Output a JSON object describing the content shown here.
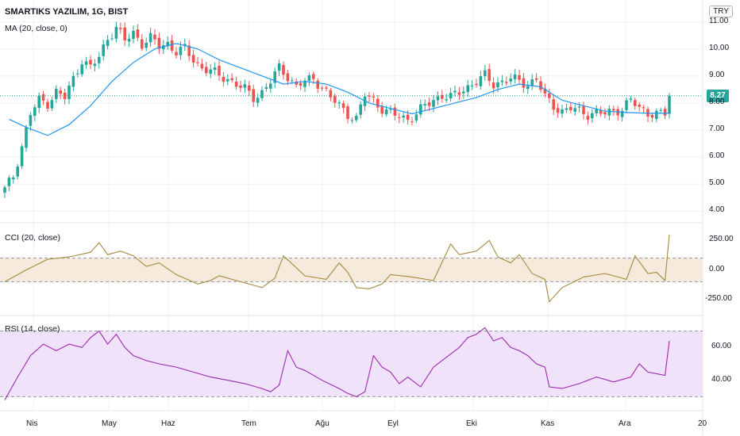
{
  "header": {
    "symbol_line": "SMARTIKS YAZILIM, 1G, BIST",
    "currency": "TRY"
  },
  "indicators": {
    "ma": "MA (20, close, 0)",
    "cci": "CCI (20, close)",
    "rsi": "RSI (14, close)"
  },
  "last_price": "8.27",
  "colors": {
    "up": "#26a69a",
    "down": "#ef5350",
    "ma": "#2196f3",
    "cci": "#a6893f",
    "cci_band": "#f5eadb",
    "rsi": "#9c27b0",
    "rsi_band": "#f1e2fb",
    "grid": "#eef0f3"
  },
  "chart_data": [
    {
      "type": "candlestick",
      "name": "price",
      "y_ticks": [
        "4.00",
        "5.00",
        "6.00",
        "7.00",
        "8.00",
        "9.00",
        "10.00",
        "11.00"
      ],
      "ylim": [
        3.6,
        11.4
      ],
      "x_tick_labels": [
        "Nis",
        "May",
        "Haz",
        "Tem",
        "Ağu",
        "Eyl",
        "Eki",
        "Kas",
        "Ara",
        "20"
      ],
      "waypoints_close": [
        [
          0,
          4.8
        ],
        [
          2,
          5.3
        ],
        [
          4,
          6.4
        ],
        [
          6,
          7.6
        ],
        [
          8,
          8.1
        ],
        [
          10,
          8.0
        ],
        [
          12,
          8.4
        ],
        [
          14,
          8.2
        ],
        [
          16,
          8.9
        ],
        [
          18,
          9.6
        ],
        [
          20,
          9.3
        ],
        [
          22,
          9.7
        ],
        [
          24,
          10.4
        ],
        [
          26,
          10.8
        ],
        [
          28,
          10.3
        ],
        [
          30,
          10.6
        ],
        [
          32,
          10.2
        ],
        [
          34,
          10.4
        ],
        [
          36,
          10.1
        ],
        [
          38,
          10.2
        ],
        [
          40,
          9.9
        ],
        [
          42,
          10.0
        ],
        [
          44,
          9.6
        ],
        [
          46,
          9.3
        ],
        [
          48,
          9.2
        ],
        [
          50,
          9.0
        ],
        [
          52,
          8.9
        ],
        [
          54,
          8.7
        ],
        [
          56,
          8.5
        ],
        [
          58,
          8.2
        ],
        [
          60,
          8.4
        ],
        [
          62,
          8.8
        ],
        [
          64,
          9.3
        ],
        [
          66,
          9.0
        ],
        [
          68,
          8.6
        ],
        [
          70,
          8.8
        ],
        [
          72,
          8.9
        ],
        [
          74,
          8.6
        ],
        [
          76,
          8.2
        ],
        [
          78,
          7.9
        ],
        [
          80,
          7.6
        ],
        [
          82,
          7.4
        ],
        [
          84,
          8.3
        ],
        [
          86,
          8.1
        ],
        [
          88,
          7.8
        ],
        [
          90,
          7.6
        ],
        [
          92,
          7.5
        ],
        [
          94,
          7.4
        ],
        [
          96,
          7.6
        ],
        [
          98,
          7.9
        ],
        [
          100,
          8.1
        ],
        [
          102,
          8.3
        ],
        [
          104,
          8.2
        ],
        [
          106,
          8.4
        ],
        [
          108,
          8.6
        ],
        [
          110,
          8.8
        ],
        [
          112,
          9.0
        ],
        [
          114,
          8.7
        ],
        [
          116,
          8.8
        ],
        [
          118,
          8.9
        ],
        [
          120,
          8.8
        ],
        [
          122,
          8.7
        ],
        [
          124,
          8.9
        ],
        [
          126,
          8.2
        ],
        [
          128,
          7.9
        ],
        [
          130,
          7.7
        ],
        [
          132,
          7.8
        ],
        [
          134,
          7.7
        ],
        [
          136,
          7.6
        ],
        [
          138,
          7.65
        ],
        [
          140,
          7.6
        ],
        [
          142,
          7.7
        ],
        [
          144,
          7.8
        ],
        [
          146,
          8.1
        ],
        [
          148,
          7.8
        ],
        [
          150,
          7.65
        ],
        [
          152,
          7.6
        ],
        [
          154,
          7.58
        ],
        [
          155,
          8.27
        ]
      ],
      "candle_count": 156,
      "last": 8.27
    },
    {
      "type": "line",
      "name": "MA (20, close, 0)",
      "x": [
        1,
        5,
        10,
        15,
        20,
        25,
        30,
        35,
        40,
        45,
        50,
        55,
        60,
        65,
        70,
        75,
        80,
        85,
        90,
        95,
        100,
        105,
        110,
        115,
        120,
        125,
        130,
        135,
        140,
        145,
        150,
        155
      ],
      "values": [
        7.4,
        7.1,
        6.8,
        7.2,
        7.9,
        8.8,
        9.5,
        10.0,
        10.2,
        10.0,
        9.6,
        9.3,
        9.0,
        8.7,
        8.8,
        8.7,
        8.4,
        8.0,
        7.8,
        7.6,
        7.8,
        8.0,
        8.2,
        8.5,
        8.7,
        8.6,
        8.1,
        7.9,
        7.7,
        7.65,
        7.62,
        7.62
      ]
    },
    {
      "type": "line",
      "name": "CCI (20, close)",
      "y_ticks": [
        "250.00",
        "0.00",
        "-250.00"
      ],
      "ylim": [
        -380,
        380
      ],
      "band": [
        -100,
        100
      ],
      "x": [
        0,
        5,
        10,
        15,
        20,
        22,
        24,
        27,
        30,
        33,
        36,
        40,
        45,
        48,
        50,
        55,
        60,
        63,
        65,
        70,
        75,
        78,
        80,
        82,
        85,
        88,
        90,
        95,
        100,
        104,
        106,
        110,
        113,
        115,
        118,
        120,
        123,
        126,
        127,
        130,
        135,
        140,
        143,
        145,
        147,
        150,
        152,
        154,
        155
      ],
      "values": [
        -100,
        0,
        90,
        110,
        150,
        230,
        130,
        160,
        120,
        30,
        60,
        -40,
        -120,
        -90,
        -50,
        -100,
        -150,
        -70,
        120,
        -50,
        -80,
        60,
        -20,
        -150,
        -160,
        -120,
        -40,
        -60,
        -90,
        220,
        130,
        160,
        250,
        110,
        60,
        130,
        -30,
        -80,
        -270,
        -150,
        -60,
        -30,
        -60,
        -80,
        120,
        -30,
        -20,
        -90,
        300
      ]
    },
    {
      "type": "line",
      "name": "RSI (14, close)",
      "y_ticks": [
        "40.00",
        "60.00"
      ],
      "ylim": [
        22,
        78
      ],
      "band": [
        30,
        70
      ],
      "x": [
        0,
        3,
        6,
        9,
        12,
        15,
        18,
        20,
        22,
        24,
        26,
        28,
        30,
        33,
        36,
        40,
        44,
        48,
        52,
        56,
        60,
        62,
        64,
        66,
        68,
        70,
        74,
        78,
        80,
        82,
        84,
        86,
        88,
        90,
        92,
        94,
        97,
        100,
        103,
        106,
        108,
        110,
        112,
        114,
        116,
        118,
        120,
        122,
        124,
        126,
        127,
        130,
        134,
        138,
        142,
        146,
        148,
        150,
        152,
        154,
        155
      ],
      "values": [
        28,
        42,
        55,
        62,
        58,
        62,
        60,
        66,
        70,
        62,
        68,
        60,
        55,
        52,
        50,
        48,
        45,
        42,
        40,
        38,
        35,
        33,
        37,
        58,
        48,
        46,
        40,
        35,
        32,
        30,
        33,
        55,
        48,
        45,
        38,
        42,
        36,
        48,
        54,
        60,
        66,
        68,
        72,
        64,
        66,
        60,
        58,
        55,
        50,
        48,
        36,
        35,
        38,
        42,
        39,
        42,
        50,
        45,
        44,
        43,
        64
      ]
    }
  ]
}
